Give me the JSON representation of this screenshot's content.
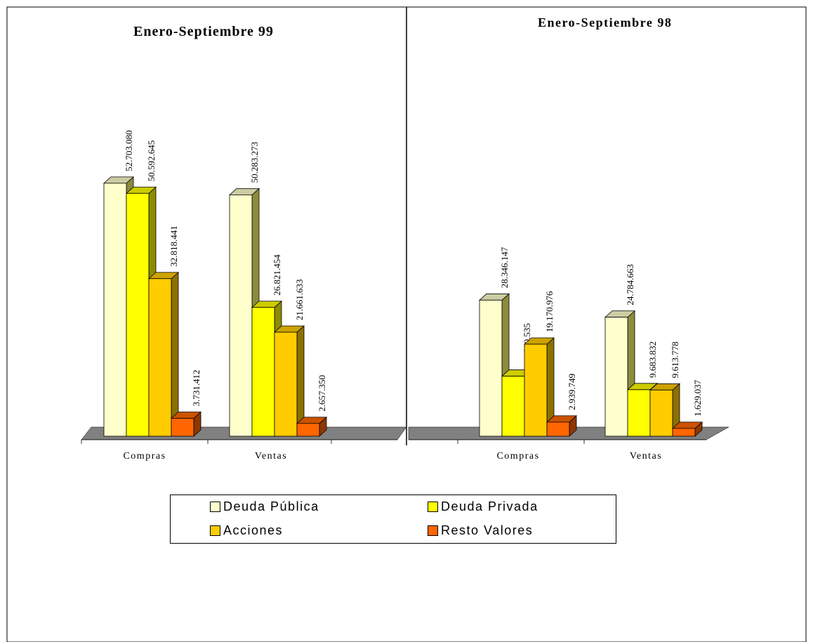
{
  "legend": [
    {
      "label": "Deuda Pública",
      "color": "#FFFFCC"
    },
    {
      "label": "Deuda Privada",
      "color": "#FFFF00"
    },
    {
      "label": "Acciones",
      "color": "#FFCC00"
    },
    {
      "label": "Resto Valores",
      "color": "#FF6600"
    }
  ],
  "chart_data": [
    {
      "type": "bar",
      "title": "Enero-Septiembre 99",
      "categories": [
        "Compras",
        "Ventas"
      ],
      "series": [
        {
          "name": "Deuda Pública",
          "values": [
            52703080,
            50283273
          ],
          "labels": [
            "52.703.080",
            "50.283.273"
          ]
        },
        {
          "name": "Deuda Privada",
          "values": [
            50592645,
            26821454
          ],
          "labels": [
            "50.592.645",
            "26.821.454"
          ]
        },
        {
          "name": "Acciones",
          "values": [
            32818441,
            21661633
          ],
          "labels": [
            "32.818.441",
            "21.661.633"
          ]
        },
        {
          "name": "Resto Valores",
          "values": [
            3731412,
            2657350
          ],
          "labels": [
            "3.731.412",
            "2.657.350"
          ]
        }
      ]
    },
    {
      "type": "bar",
      "title": "Enero-Septiembre 98",
      "categories": [
        "Compras",
        "Ventas"
      ],
      "series": [
        {
          "name": "Deuda Pública",
          "values": [
            28346147,
            24784663
          ],
          "labels": [
            "28.346.147",
            "24.784.663"
          ]
        },
        {
          "name": "Deuda Privada",
          "values": [
            12500535,
            9683832
          ],
          "labels": [
            "12.500.535",
            "9.683.832"
          ]
        },
        {
          "name": "Acciones",
          "values": [
            19170976,
            9613778
          ],
          "labels": [
            "19.170.976",
            "9.613.778"
          ]
        },
        {
          "name": "Resto Valores",
          "values": [
            2939749,
            1629037
          ],
          "labels": [
            "2.939.749",
            "1.629.037"
          ]
        }
      ]
    }
  ]
}
